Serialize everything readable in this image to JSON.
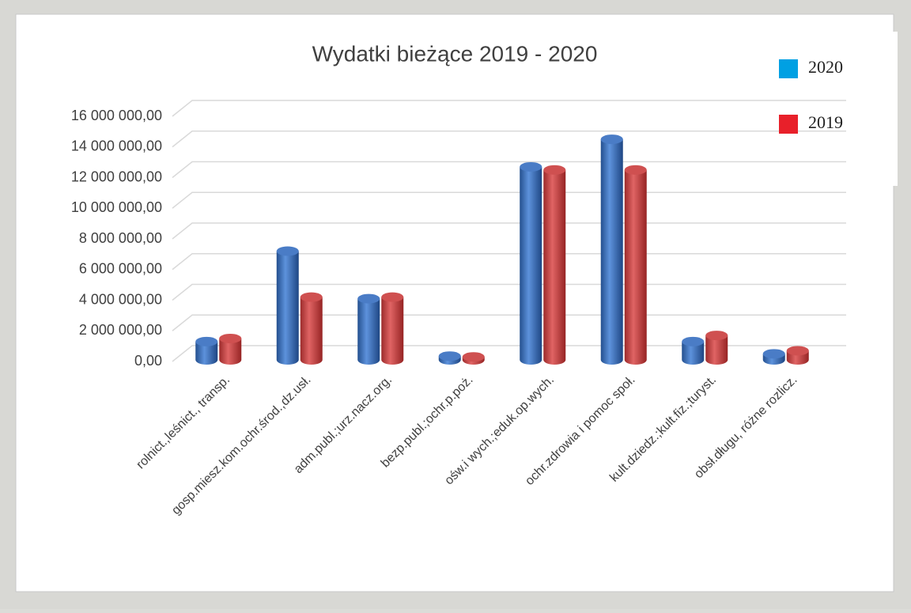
{
  "chart_data": {
    "type": "bar",
    "title": "Wydatki bieżące  2019  - 2020",
    "categories": [
      "rolnict.,leśnict., transp.",
      "gosp.miesz.kom.ochr.środ.,dz.usł.",
      "adm.publ.;urz.nacz.org.",
      "bezp.publ.;ochr.p.poż.",
      "ośw.i wych.;eduk.op.wych.",
      "ochr.zdrowia i pomoc społ.",
      "kult.dziedz.;kult.fiz.;turyst.",
      "obsł.długu, różne rozlicz."
    ],
    "series": [
      {
        "name": "2020",
        "color": "#00a0e3",
        "values": [
          1300000,
          7200000,
          4100000,
          350000,
          12700000,
          14500000,
          1300000,
          500000
        ]
      },
      {
        "name": "2019",
        "color": "#e8202a",
        "values": [
          1500000,
          4200000,
          4200000,
          300000,
          12500000,
          12500000,
          1700000,
          700000
        ]
      }
    ],
    "ylim": [
      0,
      16000000
    ],
    "yticks": [
      {
        "value": 0,
        "label": "0,00"
      },
      {
        "value": 2000000,
        "label": "2 000 000,00"
      },
      {
        "value": 4000000,
        "label": "4 000 000,00"
      },
      {
        "value": 6000000,
        "label": "6 000 000,00"
      },
      {
        "value": 8000000,
        "label": "8 000 000,00"
      },
      {
        "value": 10000000,
        "label": "10 000 000,00"
      },
      {
        "value": 12000000,
        "label": "12 000 000,00"
      },
      {
        "value": 14000000,
        "label": "14 000 000,00"
      },
      {
        "value": 16000000,
        "label": "16 000 000,00"
      }
    ],
    "grid": true,
    "legend": "top-right"
  }
}
